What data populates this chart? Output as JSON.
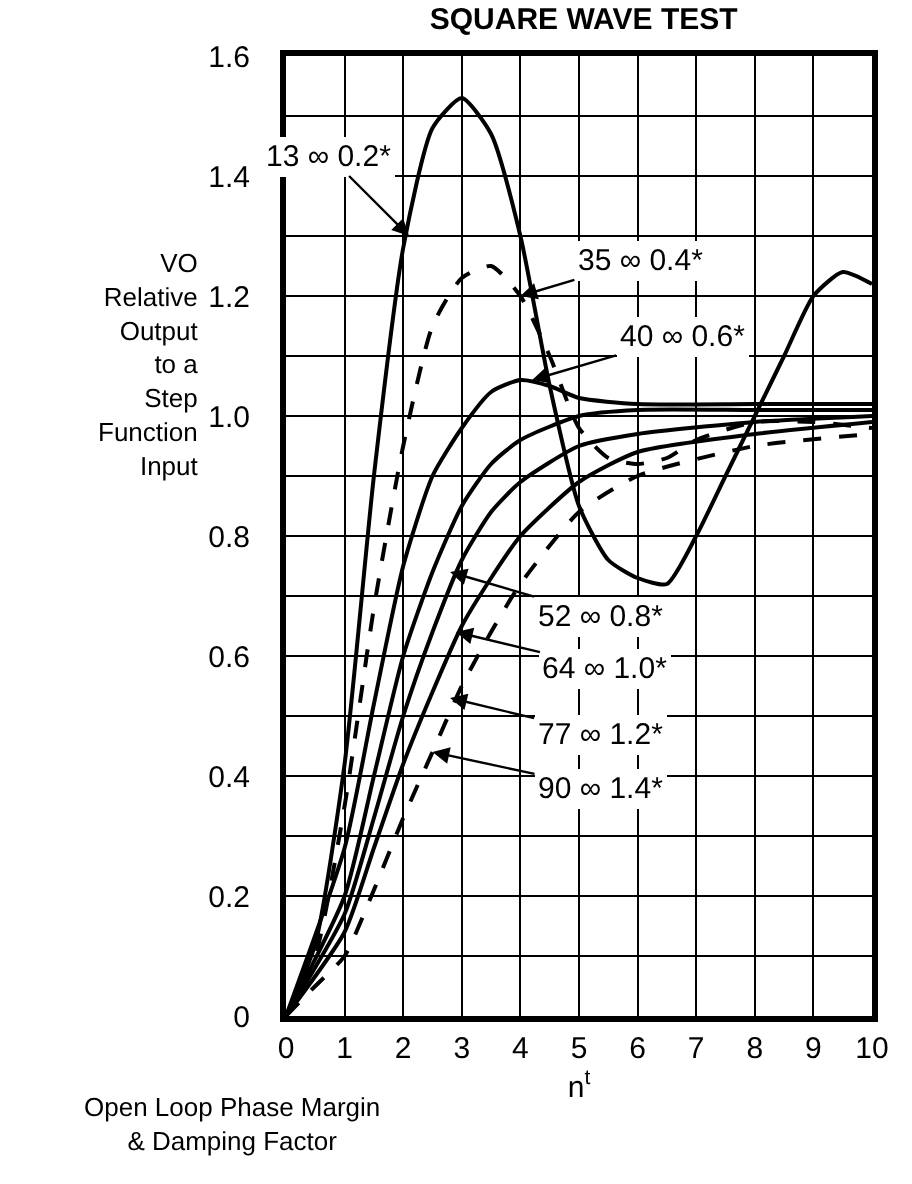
{
  "chart_data": {
    "type": "line",
    "title": "SQUARE WAVE TEST",
    "xlabel": "n$^{t}$",
    "ylabel": "VO\nRelative\nOutput\nto a\nStep\nFunction\nInput",
    "xlim": [
      0,
      10
    ],
    "ylim": [
      0,
      1.6
    ],
    "xticks": [
      0,
      1,
      2,
      3,
      4,
      5,
      6,
      7,
      8,
      9,
      10
    ],
    "yticks": [
      0,
      {
        "value": 0.1,
        "label": null
      },
      0.2,
      {
        "value": 0.3,
        "label": null
      },
      0.4,
      {
        "value": 0.5,
        "label": null
      },
      0.6,
      {
        "value": 0.7,
        "label": null
      },
      0.8,
      {
        "value": 0.9,
        "label": null
      },
      {
        "value": 1.0,
        "label": "1.0"
      },
      {
        "value": 1.1,
        "label": null
      },
      1.2,
      {
        "value": 1.3,
        "label": null
      },
      1.4,
      {
        "value": 1.5,
        "label": null
      },
      1.6
    ],
    "grid": true,
    "marker": "none",
    "series": [
      {
        "color": "#000000",
        "line_style": "solid",
        "x": [
          0,
          0.5,
          1,
          1.5,
          2,
          2.5,
          3,
          3.5,
          4,
          4.5,
          5,
          5.5,
          6,
          6.5,
          7,
          7.5,
          8,
          8.5,
          9,
          9.5,
          10
        ],
        "values": [
          0,
          0.12,
          0.42,
          0.9,
          1.28,
          1.48,
          1.53,
          1.47,
          1.3,
          1.05,
          0.85,
          0.76,
          0.73,
          0.72,
          0.8,
          0.9,
          1.0,
          1.1,
          1.2,
          1.24,
          1.22
        ]
      },
      {
        "color": "#000000",
        "line_style": "dashed",
        "x": [
          0,
          0.5,
          1,
          1.5,
          2,
          2.5,
          3,
          3.5,
          4,
          4.5,
          5,
          5.5,
          6,
          6.5,
          7,
          8,
          9,
          10
        ],
        "values": [
          0,
          0.1,
          0.35,
          0.68,
          0.95,
          1.15,
          1.23,
          1.25,
          1.2,
          1.1,
          0.98,
          0.93,
          0.92,
          0.93,
          0.96,
          0.99,
          0.99,
          0.98
        ]
      },
      {
        "color": "#000000",
        "line_style": "solid",
        "x": [
          0,
          1,
          1.5,
          2,
          2.5,
          3,
          3.5,
          4,
          4.5,
          5,
          6,
          8,
          10
        ],
        "values": [
          0,
          0.28,
          0.52,
          0.75,
          0.9,
          0.98,
          1.04,
          1.06,
          1.05,
          1.03,
          1.02,
          1.02,
          1.02
        ]
      },
      {
        "color": "#000000",
        "line_style": "solid",
        "x": [
          0,
          1,
          1.5,
          2,
          2.5,
          3,
          3.5,
          4,
          5,
          6,
          8,
          10
        ],
        "values": [
          0,
          0.2,
          0.4,
          0.6,
          0.74,
          0.85,
          0.92,
          0.96,
          1.0,
          1.01,
          1.01,
          1.01
        ]
      },
      {
        "color": "#000000",
        "line_style": "solid",
        "x": [
          0,
          1,
          1.5,
          2,
          2.5,
          3,
          3.5,
          4,
          5,
          6,
          8,
          10
        ],
        "values": [
          0,
          0.17,
          0.33,
          0.5,
          0.64,
          0.76,
          0.84,
          0.89,
          0.95,
          0.97,
          0.99,
          1.0
        ]
      },
      {
        "color": "#000000",
        "line_style": "solid",
        "x": [
          0,
          1,
          1.5,
          2,
          2.5,
          3,
          3.5,
          4,
          5,
          6,
          8,
          10
        ],
        "values": [
          0,
          0.14,
          0.28,
          0.42,
          0.54,
          0.65,
          0.73,
          0.8,
          0.89,
          0.94,
          0.97,
          0.99
        ]
      },
      {
        "color": "#000000",
        "line_style": "dashed",
        "x": [
          0,
          0.5,
          1,
          1.5,
          2,
          2.5,
          3,
          3.5,
          4,
          5,
          6,
          8,
          10
        ],
        "values": [
          0,
          0.05,
          0.1,
          0.21,
          0.33,
          0.44,
          0.55,
          0.64,
          0.72,
          0.84,
          0.9,
          0.95,
          0.97
        ]
      }
    ],
    "annotations": [
      {
        "text": "13 ∞ 0.2*",
        "x": 2.1,
        "y": 1.3
      },
      {
        "text": "35 ∞ 0.4*",
        "x": 4,
        "y": 1.2
      },
      {
        "text": "40 ∞ 0.6*",
        "x": 4.2,
        "y": 1.06
      },
      {
        "text": "52 ∞ 0.8*",
        "x": 2.8,
        "y": 0.74
      },
      {
        "text": "64 ∞ 1.0*",
        "x": 2.9,
        "y": 0.64
      },
      {
        "text": "77 ∞ 1.2*",
        "x": 2.8,
        "y": 0.53
      },
      {
        "text": "90 ∞ 1.4*",
        "x": 2.5,
        "y": 0.44
      },
      "Open Loop Phase Margin\n& Damping Factor"
    ]
  }
}
